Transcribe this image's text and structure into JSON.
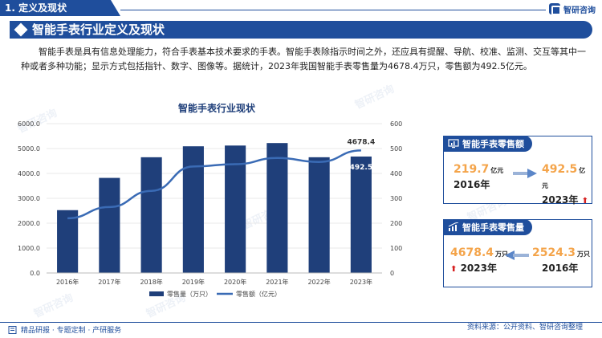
{
  "header": {
    "section_label": "1. 定义及现状",
    "brand_name": "智研咨询"
  },
  "title": "智能手表行业定义及现状",
  "intro": "智能手表是具有信息处理能力，符合手表基本技术要求的手表。智能手表除指示时间之外，还应具有提醒、导航、校准、监测、交互等其中一种或者多种功能；显示方式包括指针、数字、图像等。据统计，2023年我国智能手表零售量为4678.4万只，零售额为492.5亿元。",
  "chart_data": {
    "type": "bar",
    "title": "智能手表行业现状",
    "categories": [
      "2016年",
      "2017年",
      "2018年",
      "2019年",
      "2020年",
      "2021年",
      "2022年",
      "2023年"
    ],
    "series": [
      {
        "name": "零售量（万只）",
        "type": "bar",
        "axis": "left",
        "values": [
          2524.3,
          3820,
          4650,
          5090,
          5120,
          5220,
          4650,
          4678.4
        ]
      },
      {
        "name": "零售额（亿元）",
        "type": "line",
        "axis": "right",
        "values": [
          219.7,
          265,
          330,
          428,
          437,
          462,
          446,
          492.5
        ]
      }
    ],
    "y_left": {
      "min": 0,
      "max": 6000,
      "ticks": [
        "0.0",
        "1000.0",
        "2000.0",
        "3000.0",
        "4000.0",
        "5000.0",
        "6000.0"
      ]
    },
    "y_right": {
      "min": 0,
      "max": 600,
      "ticks": [
        "0",
        "100",
        "200",
        "300",
        "400",
        "500",
        "600"
      ]
    },
    "labels": {
      "bar_last": "4678.4",
      "line_last": "492.5"
    },
    "legend_placement": "bottom",
    "grid": true,
    "colors": {
      "bar": "#1f3f7a",
      "line": "#3a6bb5"
    }
  },
  "cards": {
    "sales_value": {
      "title": "智能手表零售额",
      "from_value": "219.7",
      "from_unit": "亿元",
      "from_year": "2016年",
      "to_value": "492.5",
      "to_unit": "亿元",
      "to_year": "2023年"
    },
    "sales_volume": {
      "title": "智能手表零售量",
      "left_value": "4678.4",
      "left_unit": "万只",
      "left_year": "2023年",
      "right_value": "2524.3",
      "right_unit": "万只",
      "right_year": "2016年"
    }
  },
  "footer": {
    "left": "精品研报 · 专题定制 · 产研服务",
    "right": "资料来源：公开资料、智研咨询整理"
  },
  "watermark": "智研咨询",
  "colors": {
    "primary": "#1f4e9c",
    "accent": "#f4a44a",
    "up_arrow": "#d62020"
  }
}
